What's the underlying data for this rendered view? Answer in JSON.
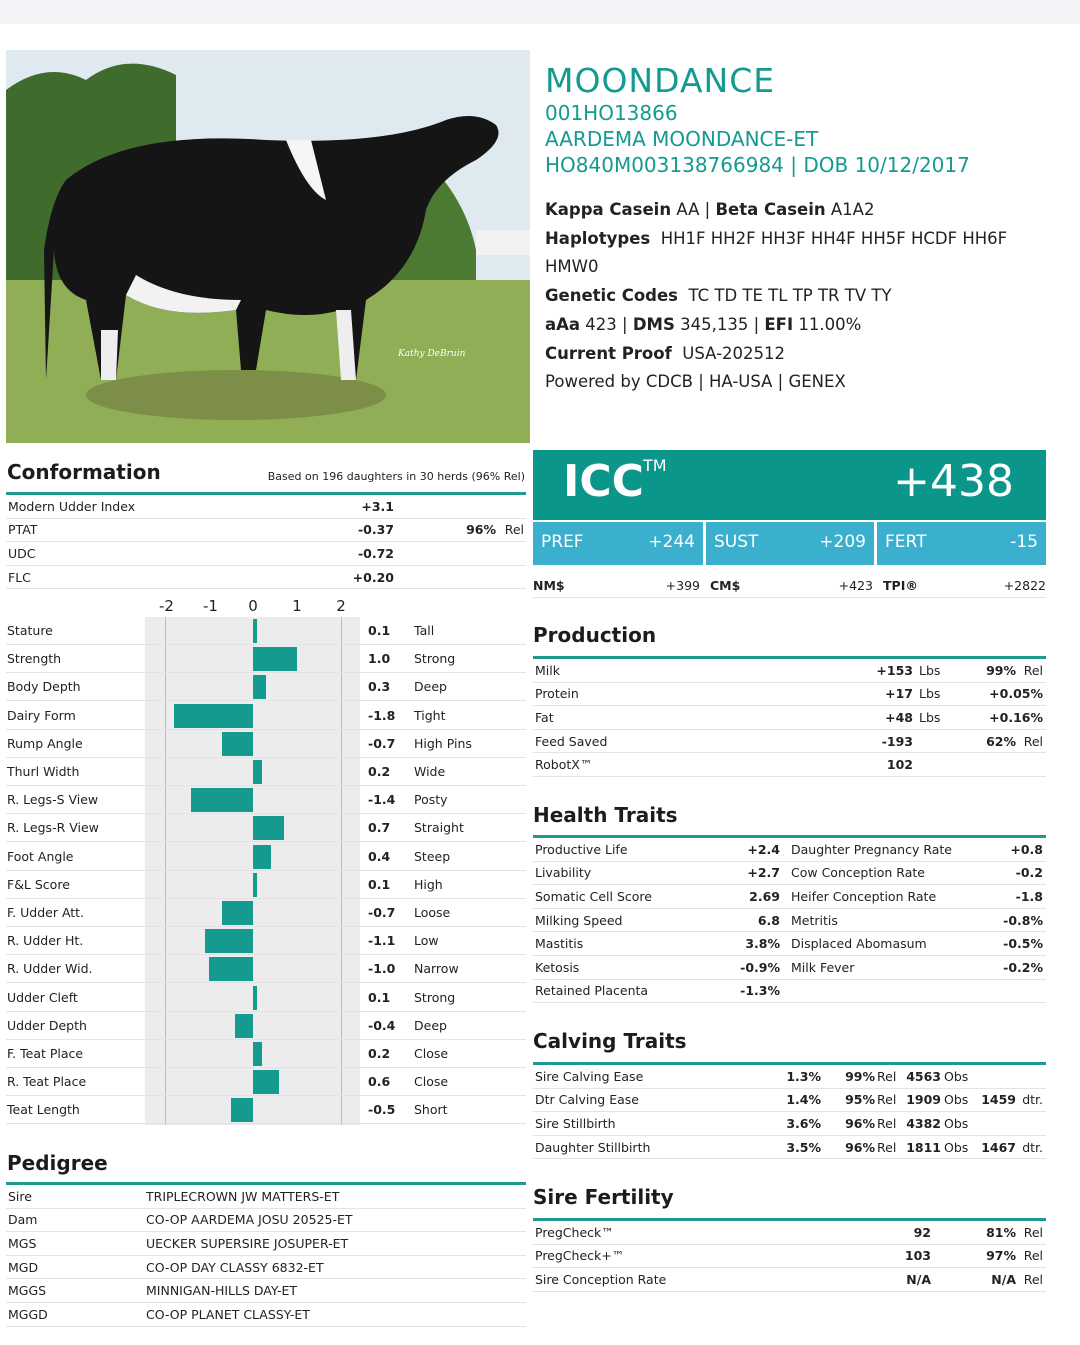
{
  "header": {
    "name": "MOONDANCE",
    "code": "001HO13866",
    "reg_name": "AARDEMA MOONDANCE-ET",
    "id_dob": "HO840M003138766984 | DOB 10/12/2017"
  },
  "photo": {
    "credit": "Kathy DeBruin"
  },
  "info": [
    {
      "label": "Kappa Casein",
      "value": "AA |",
      "label2": "Beta Casein",
      "value2": "A1A2"
    },
    {
      "label": "Haplotypes",
      "value": "HH1F HH2F HH3F HH4F HH5F HCDF HH6F HMW0"
    },
    {
      "label": "Genetic Codes",
      "value": "TC TD TE TL TP TR TV TY"
    },
    {
      "label": "aAa",
      "value": "423 |",
      "label2": "DMS",
      "value2": "345,135 |",
      "label3": "EFI",
      "value3": "11.00%"
    },
    {
      "label": "Current Proof",
      "value": "USA-202512"
    },
    {
      "label": "",
      "value": "Powered by CDCB | HA-USA | GENEX"
    }
  ],
  "icc": {
    "label": "ICC",
    "tm": "TM",
    "value": "+438",
    "subs": [
      {
        "label": "PREF",
        "value": "+244"
      },
      {
        "label": "SUST",
        "value": "+209"
      },
      {
        "label": "FERT",
        "value": "-15"
      }
    ],
    "indexes": [
      {
        "label": "NM$",
        "value": "+399"
      },
      {
        "label": "CM$",
        "value": "+423"
      },
      {
        "label": "TPI®",
        "value": "+2822"
      }
    ]
  },
  "colors": {
    "teal": "#0a968b",
    "light_blue": "#3aafce"
  },
  "conformation": {
    "title": "Conformation",
    "note": "Based on 196 daughters in 30 herds (96% Rel)",
    "summary": [
      {
        "label": "Modern Udder Index",
        "value": "+3.1",
        "rel": ""
      },
      {
        "label": "PTAT",
        "value": "-0.37",
        "rel_b": "96%",
        "rel": "Rel"
      },
      {
        "label": "UDC",
        "value": "-0.72",
        "rel": ""
      },
      {
        "label": "FLC",
        "value": "+0.20",
        "rel": ""
      }
    ],
    "axis_ticks": [
      "-2",
      "-1",
      "0",
      "1",
      "2"
    ],
    "traits": [
      {
        "label": "Stature",
        "value": 0.1,
        "text": "0.1",
        "desc": "Tall"
      },
      {
        "label": "Strength",
        "value": 1.0,
        "text": "1.0",
        "desc": "Strong"
      },
      {
        "label": "Body Depth",
        "value": 0.3,
        "text": "0.3",
        "desc": "Deep"
      },
      {
        "label": "Dairy Form",
        "value": -1.8,
        "text": "-1.8",
        "desc": "Tight"
      },
      {
        "label": "Rump Angle",
        "value": -0.7,
        "text": "-0.7",
        "desc": "High Pins"
      },
      {
        "label": "Thurl Width",
        "value": 0.2,
        "text": "0.2",
        "desc": "Wide"
      },
      {
        "label": "R. Legs-S View",
        "value": -1.4,
        "text": "-1.4",
        "desc": "Posty"
      },
      {
        "label": "R. Legs-R View",
        "value": 0.7,
        "text": "0.7",
        "desc": "Straight"
      },
      {
        "label": "Foot Angle",
        "value": 0.4,
        "text": "0.4",
        "desc": "Steep"
      },
      {
        "label": "F&L Score",
        "value": 0.1,
        "text": "0.1",
        "desc": "High"
      },
      {
        "label": "F. Udder Att.",
        "value": -0.7,
        "text": "-0.7",
        "desc": "Loose"
      },
      {
        "label": "R. Udder Ht.",
        "value": -1.1,
        "text": "-1.1",
        "desc": "Low"
      },
      {
        "label": "R. Udder Wid.",
        "value": -1.0,
        "text": "-1.0",
        "desc": "Narrow"
      },
      {
        "label": "Udder Cleft",
        "value": 0.1,
        "text": "0.1",
        "desc": "Strong"
      },
      {
        "label": "Udder Depth",
        "value": -0.4,
        "text": "-0.4",
        "desc": "Deep"
      },
      {
        "label": "F. Teat Place",
        "value": 0.2,
        "text": "0.2",
        "desc": "Close"
      },
      {
        "label": "R. Teat Place",
        "value": 0.6,
        "text": "0.6",
        "desc": "Close"
      },
      {
        "label": "Teat Length",
        "value": -0.5,
        "text": "-0.5",
        "desc": "Short"
      }
    ]
  },
  "pedigree": {
    "title": "Pedigree",
    "rows": [
      {
        "label": "Sire",
        "value": "TRIPLECROWN JW MATTERS-ET"
      },
      {
        "label": "Dam",
        "value": "CO-OP AARDEMA JOSU 20525-ET"
      },
      {
        "label": "MGS",
        "value": "UECKER SUPERSIRE JOSUPER-ET"
      },
      {
        "label": "MGD",
        "value": "CO-OP DAY CLASSY 6832-ET"
      },
      {
        "label": "MGGS",
        "value": "MINNIGAN-HILLS DAY-ET"
      },
      {
        "label": "MGGD",
        "value": "CO-OP PLANET CLASSY-ET"
      }
    ]
  },
  "production": {
    "title": "Production",
    "rows": [
      {
        "label": "Milk",
        "value": "+153",
        "unit": "Lbs",
        "rel_b": "99%",
        "rel": "Rel"
      },
      {
        "label": "Protein",
        "value": "+17",
        "unit": "Lbs",
        "rel_b": "+0.05%",
        "rel": ""
      },
      {
        "label": "Fat",
        "value": "+48",
        "unit": "Lbs",
        "rel_b": "+0.16%",
        "rel": ""
      },
      {
        "label": "Feed Saved",
        "value": "-193",
        "unit": "",
        "rel_b": "62%",
        "rel": "Rel"
      },
      {
        "label": "RobotX™",
        "value": "102",
        "unit": "",
        "rel_b": "",
        "rel": ""
      }
    ]
  },
  "health": {
    "title": "Health Traits",
    "rows": [
      {
        "l1": "Productive Life",
        "v1": "+2.4",
        "l2": "Daughter Pregnancy Rate",
        "v2": "+0.8"
      },
      {
        "l1": "Livability",
        "v1": "+2.7",
        "l2": "Cow Conception Rate",
        "v2": "-0.2"
      },
      {
        "l1": "Somatic Cell Score",
        "v1": "2.69",
        "l2": "Heifer Conception Rate",
        "v2": "-1.8"
      },
      {
        "l1": "Milking Speed",
        "v1": "6.8",
        "l2": "Metritis",
        "v2": "-0.8%"
      },
      {
        "l1": "Mastitis",
        "v1": "3.8%",
        "l2": "Displaced Abomasum",
        "v2": "-0.5%"
      },
      {
        "l1": "Ketosis",
        "v1": "-0.9%",
        "l2": "Milk Fever",
        "v2": "-0.2%"
      },
      {
        "l1": "Retained Placenta",
        "v1": "-1.3%",
        "l2": "",
        "v2": ""
      }
    ]
  },
  "calving": {
    "title": "Calving Traits",
    "rows": [
      {
        "label": "Sire Calving Ease",
        "value": "1.3%",
        "rel_b": "99%",
        "rel": "Rel",
        "obs_b": "4563",
        "obs": "Obs",
        "dtr_b": "",
        "dtr": ""
      },
      {
        "label": "Dtr Calving Ease",
        "value": "1.4%",
        "rel_b": "95%",
        "rel": "Rel",
        "obs_b": "1909",
        "obs": "Obs",
        "dtr_b": "1459",
        "dtr": "dtr."
      },
      {
        "label": "Sire Stillbirth",
        "value": "3.6%",
        "rel_b": "96%",
        "rel": "Rel",
        "obs_b": "4382",
        "obs": "Obs",
        "dtr_b": "",
        "dtr": ""
      },
      {
        "label": "Daughter Stillbirth",
        "value": "3.5%",
        "rel_b": "96%",
        "rel": "Rel",
        "obs_b": "1811",
        "obs": "Obs",
        "dtr_b": "1467",
        "dtr": "dtr."
      }
    ]
  },
  "fertility": {
    "title": "Sire Fertility",
    "rows": [
      {
        "label": "PregCheck™",
        "value": "92",
        "rel_b": "81%",
        "rel": "Rel"
      },
      {
        "label": "PregCheck+™",
        "value": "103",
        "rel_b": "97%",
        "rel": "Rel"
      },
      {
        "label": "Sire Conception Rate",
        "value": "N/A",
        "rel_b": "N/A",
        "rel": "Rel"
      }
    ]
  }
}
